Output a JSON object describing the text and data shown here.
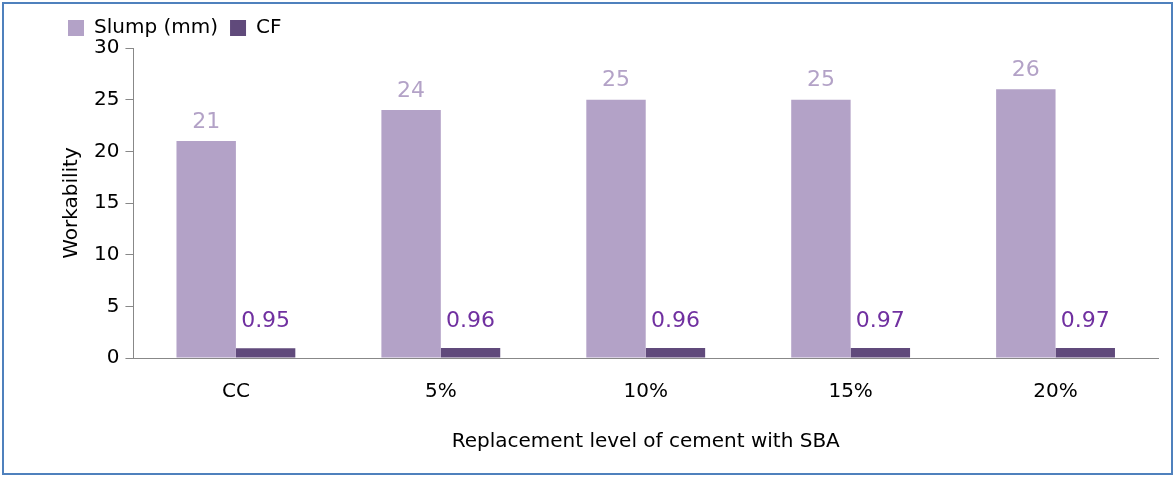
{
  "chart_data": {
    "type": "bar",
    "xlabel": "Replacement level of cement with SBA",
    "ylabel": "Workability",
    "categories": [
      "CC",
      "5%",
      "10%",
      "15%",
      "20%"
    ],
    "series": [
      {
        "name": "Slump (mm)",
        "color": "#b3a2c7",
        "values": [
          21,
          24,
          25,
          25,
          26
        ]
      },
      {
        "name": "CF",
        "color": "#604a7b",
        "values": [
          0.95,
          0.96,
          0.96,
          0.97,
          0.97
        ]
      }
    ],
    "ylim": [
      0,
      30
    ],
    "yticks": [
      0,
      5,
      10,
      15,
      20,
      25,
      30
    ],
    "grid": false,
    "legend": "top left",
    "data_labels": true
  }
}
